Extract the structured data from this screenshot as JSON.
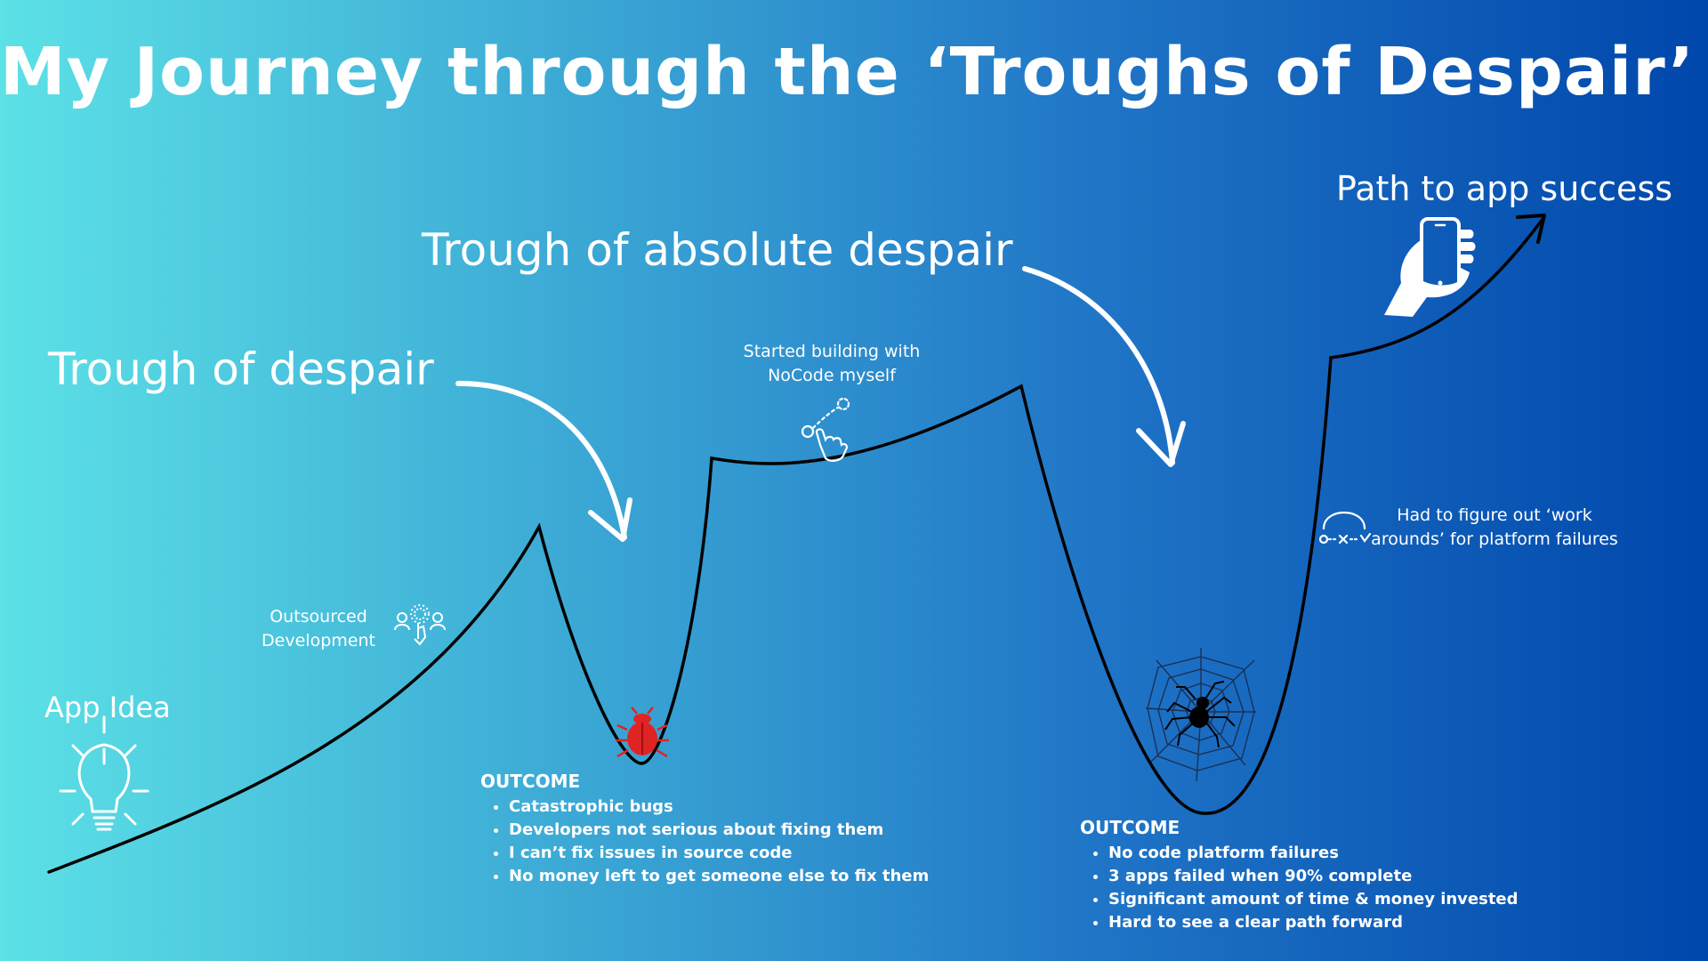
{
  "title": "My Journey through the ‘Troughs of Despair’",
  "labels": {
    "app_idea": "App Idea",
    "trough_despair": "Trough of despair",
    "trough_absolute": "Trough of absolute despair",
    "path_success": "Path to app success",
    "outsourced_line1": "Outsourced",
    "outsourced_line2": "Development",
    "nocode_line1": "Started building with",
    "nocode_line2": "NoCode myself",
    "workarounds_line1": "Had to figure out ‘work",
    "workarounds_line2": "arounds’ for platform failures"
  },
  "outcome1": {
    "heading": "OUTCOME",
    "items": [
      "Catastrophic bugs",
      "Developers not serious about fixing them",
      "I can’t fix issues in source code",
      "No money left to get someone else to fix them"
    ]
  },
  "outcome2": {
    "heading": "OUTCOME",
    "items": [
      "No code platform failures",
      "3 apps failed when 90% complete",
      "Significant amount of time & money invested",
      "Hard to see a clear path forward"
    ]
  },
  "icons": [
    "lightbulb-icon",
    "outsource-team-icon",
    "bug-icon",
    "gesture-icon",
    "spider-web-icon",
    "workaround-icon",
    "hand-phone-icon"
  ],
  "colors": {
    "bg_start": "#5ce1e6",
    "bg_end": "#0047ab",
    "bug": "#e02424",
    "curve": "#000000",
    "text": "#ffffff"
  }
}
